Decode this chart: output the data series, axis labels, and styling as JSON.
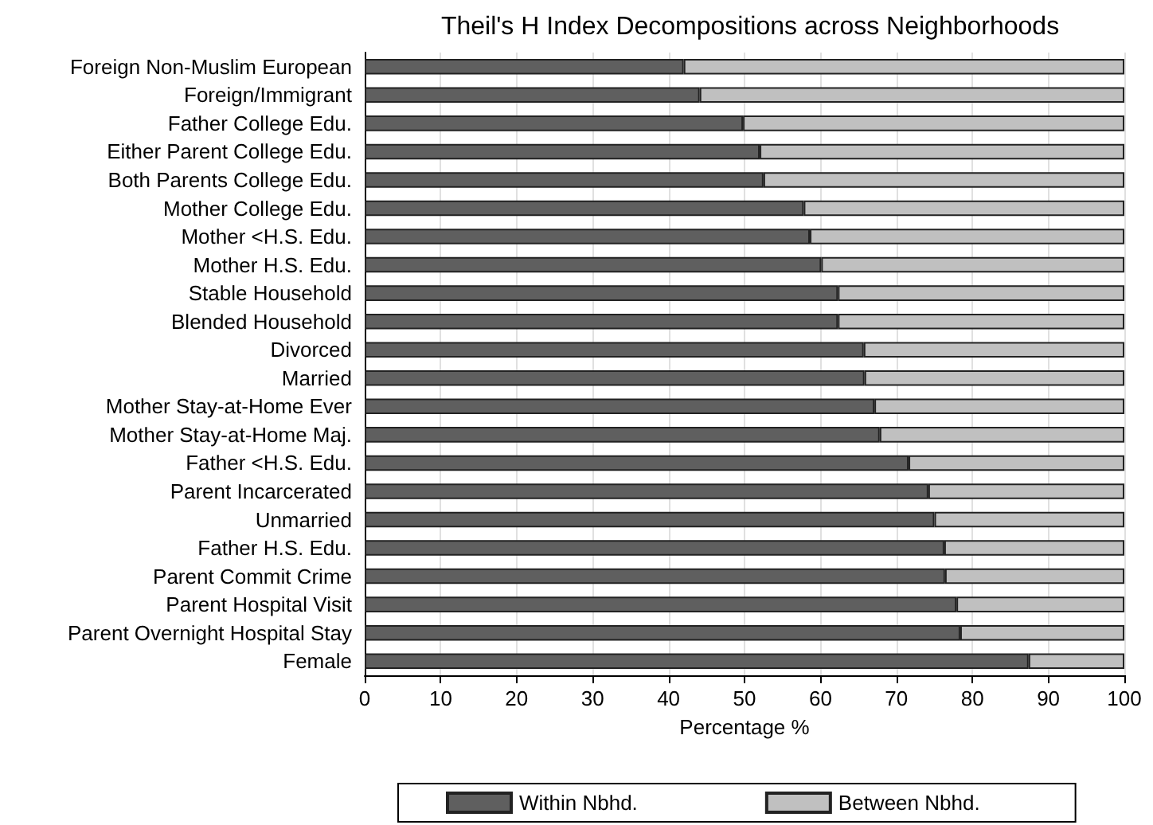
{
  "chart_data": {
    "type": "bar",
    "orientation": "horizontal",
    "stacked": true,
    "title": "Theil's H Index Decompositions across Neighborhoods",
    "xlabel": "Percentage %",
    "categories": [
      "Foreign Non-Muslim European",
      "Foreign/Immigrant",
      "Father College Edu.",
      "Either Parent College Edu.",
      "Both Parents College Edu.",
      "Mother College Edu.",
      "Mother <H.S. Edu.",
      "Mother H.S. Edu.",
      "Stable Household",
      "Blended Household",
      "Divorced",
      "Married",
      "Mother Stay-at-Home Ever",
      "Mother Stay-at-Home Maj.",
      "Father <H.S. Edu.",
      "Parent Incarcerated",
      "Unmarried",
      "Father H.S. Edu.",
      "Parent Commit Crime",
      "Parent Hospital Visit",
      "Parent Overnight Hospital Stay",
      "Female"
    ],
    "series": [
      {
        "name": "Within Nbhd.",
        "color": "#5f5f5f",
        "values": [
          42.0,
          44.1,
          49.8,
          52.0,
          52.5,
          57.8,
          58.6,
          60.1,
          62.3,
          62.3,
          65.7,
          65.8,
          67.1,
          67.8,
          71.6,
          74.2,
          75.0,
          76.3,
          76.4,
          77.9,
          78.4,
          87.4
        ]
      },
      {
        "name": "Between Nbhd.",
        "color": "#c0c0c0",
        "values": [
          58.0,
          55.9,
          50.2,
          48.0,
          47.5,
          42.2,
          41.4,
          39.9,
          37.7,
          37.7,
          34.3,
          34.2,
          32.9,
          32.2,
          28.4,
          25.8,
          25.0,
          23.7,
          23.6,
          22.1,
          21.6,
          12.6
        ]
      }
    ],
    "xlim": [
      0,
      100
    ],
    "xticks": [
      0,
      10,
      20,
      30,
      40,
      50,
      60,
      70,
      80,
      90,
      100
    ],
    "grid": "x",
    "legend": "bottom"
  }
}
